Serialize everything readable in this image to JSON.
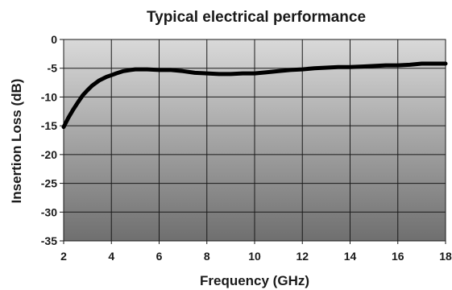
{
  "chart_data": {
    "type": "line",
    "title": "Typical electrical performance",
    "xlabel": "Frequency (GHz)",
    "ylabel": "Insertion Loss (dB)",
    "xlim": [
      2,
      18
    ],
    "ylim": [
      -35,
      0
    ],
    "xticks": [
      2,
      4,
      6,
      8,
      10,
      12,
      14,
      16,
      18
    ],
    "yticks": [
      0,
      -5,
      -10,
      -15,
      -20,
      -25,
      -30,
      -35
    ],
    "grid": true,
    "legend": "none",
    "colors": {
      "line": "#000000",
      "grid": "#1a1a1a",
      "bg_top": "#d9d9d9",
      "bg_bottom": "#6f6f6f"
    },
    "series": [
      {
        "x": [
          2.0,
          2.2,
          2.4,
          2.6,
          2.8,
          3.0,
          3.2,
          3.5,
          3.8,
          4.0,
          4.2,
          4.5,
          4.8,
          5.0,
          5.5,
          6.0,
          6.5,
          7.0,
          7.5,
          8.0,
          8.5,
          9.0,
          9.5,
          10.0,
          10.5,
          11.0,
          11.5,
          12.0,
          12.5,
          13.0,
          13.5,
          14.0,
          14.5,
          15.0,
          15.5,
          16.0,
          16.5,
          17.0,
          17.5,
          18.0
        ],
        "values": [
          -15.2,
          -13.6,
          -12.2,
          -10.9,
          -9.7,
          -8.8,
          -8.0,
          -7.1,
          -6.5,
          -6.2,
          -5.9,
          -5.5,
          -5.3,
          -5.2,
          -5.2,
          -5.3,
          -5.3,
          -5.5,
          -5.8,
          -5.9,
          -6.0,
          -6.0,
          -5.9,
          -5.9,
          -5.7,
          -5.5,
          -5.3,
          -5.2,
          -5.0,
          -4.9,
          -4.8,
          -4.8,
          -4.7,
          -4.6,
          -4.5,
          -4.5,
          -4.4,
          -4.2,
          -4.2,
          -4.2
        ]
      }
    ]
  }
}
